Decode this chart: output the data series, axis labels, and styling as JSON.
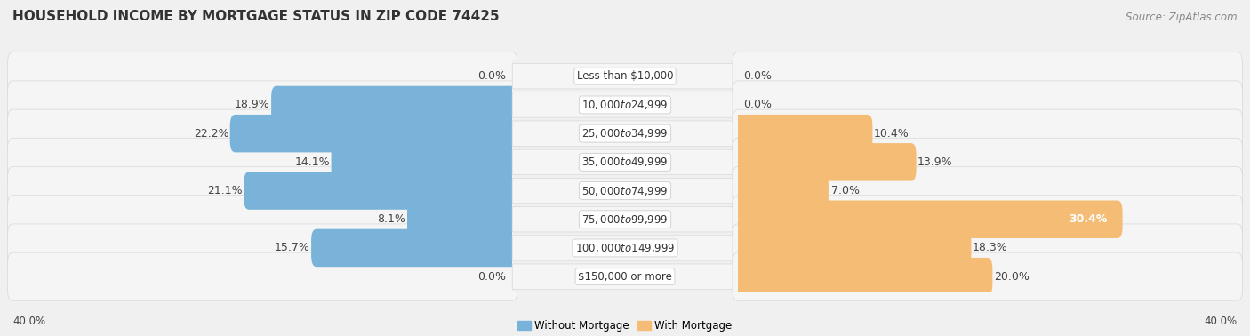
{
  "title": "HOUSEHOLD INCOME BY MORTGAGE STATUS IN ZIP CODE 74425",
  "source": "Source: ZipAtlas.com",
  "categories": [
    "Less than $10,000",
    "$10,000 to $24,999",
    "$25,000 to $34,999",
    "$35,000 to $49,999",
    "$50,000 to $74,999",
    "$75,000 to $99,999",
    "$100,000 to $149,999",
    "$150,000 or more"
  ],
  "without_mortgage": [
    0.0,
    18.9,
    22.2,
    14.1,
    21.1,
    8.1,
    15.7,
    0.0
  ],
  "with_mortgage": [
    0.0,
    0.0,
    10.4,
    13.9,
    7.0,
    30.4,
    18.3,
    20.0
  ],
  "color_without": "#7ab3d9",
  "color_with": "#f5bc75",
  "color_without_light": "#c5dff0",
  "color_with_light": "#fde3b8",
  "xlim": 40.0,
  "background_color": "#f0f0f0",
  "row_bg_color": "#f5f5f5",
  "row_border_color": "#d8d8d8",
  "legend_without": "Without Mortgage",
  "legend_with": "With Mortgage",
  "title_fontsize": 11,
  "source_fontsize": 8.5,
  "bar_label_fontsize": 9,
  "category_fontsize": 8.5
}
